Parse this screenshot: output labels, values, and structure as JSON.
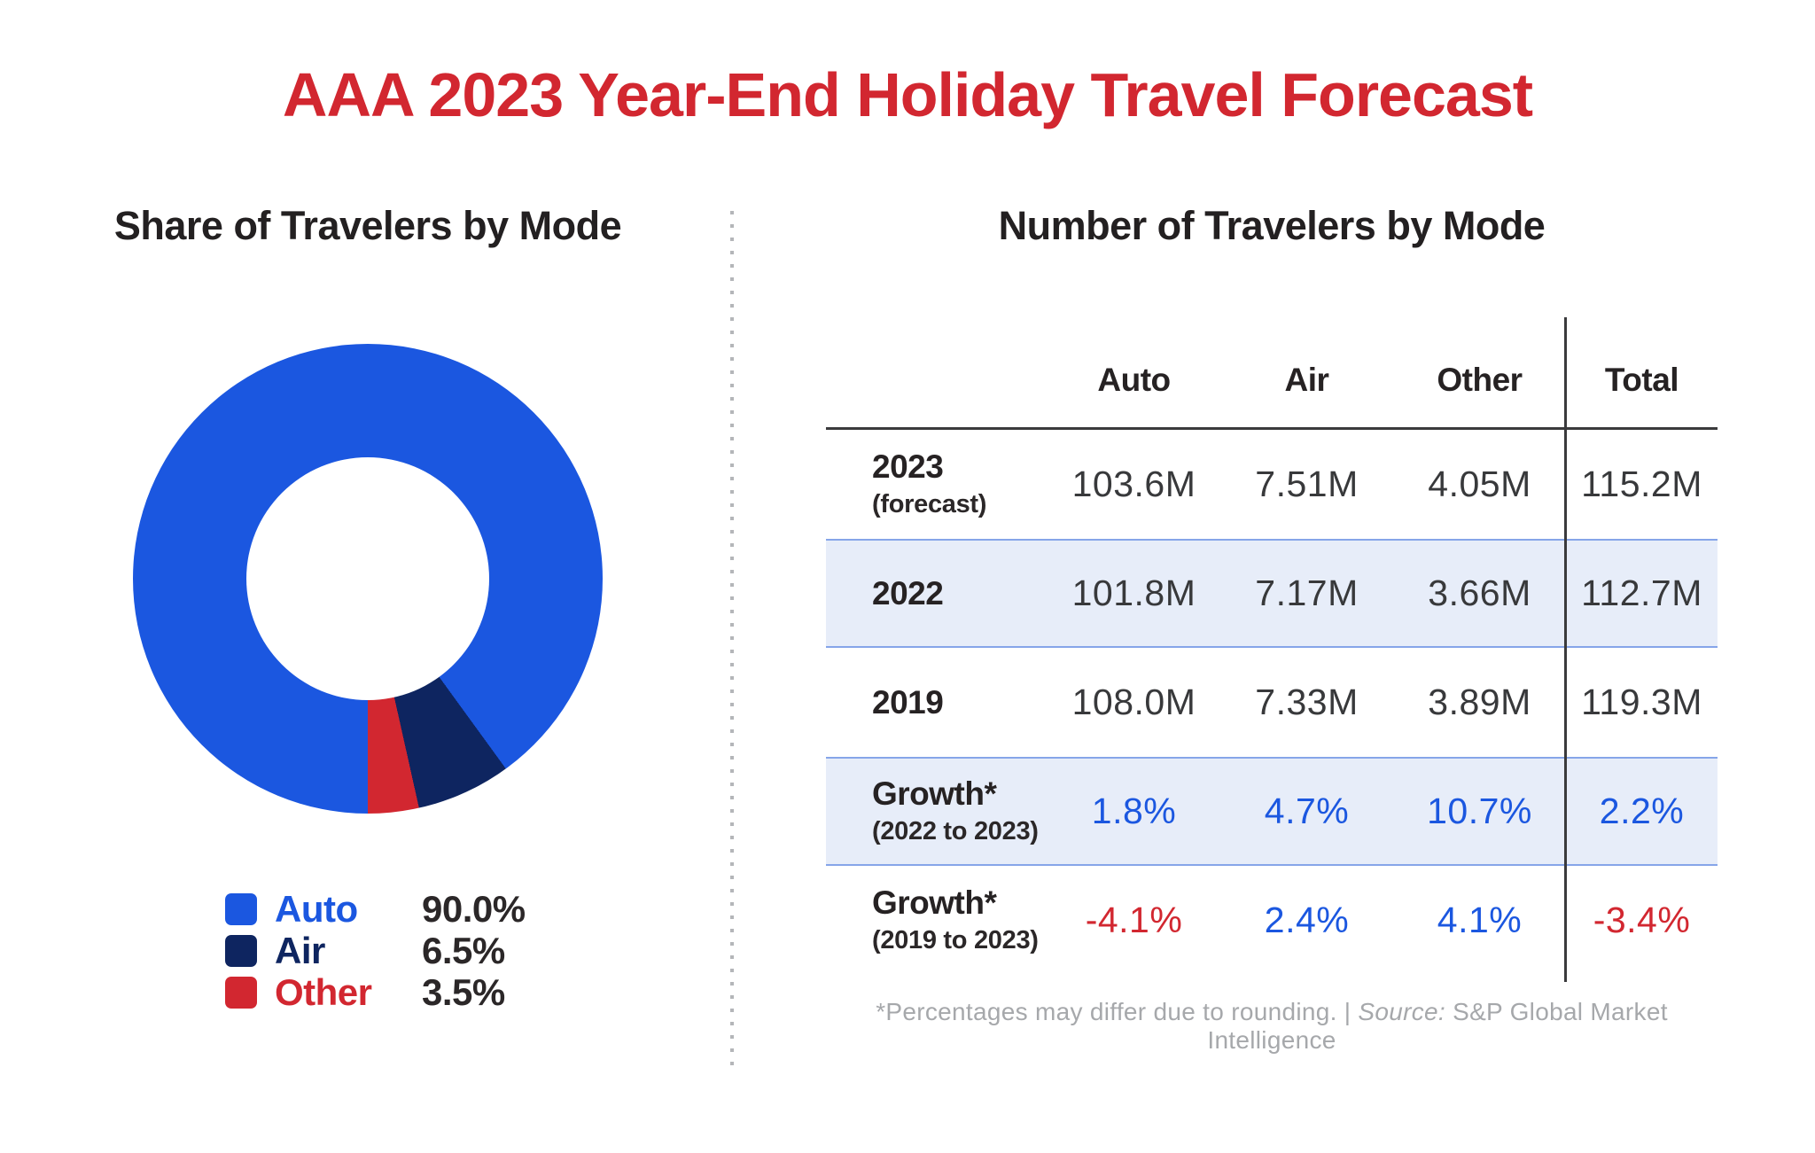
{
  "page": {
    "title": "AAA 2023 Year-End Holiday Travel Forecast"
  },
  "colors": {
    "red": "#d22730",
    "blue": "#1b57e0",
    "navy": "#0e2560",
    "band_bg": "#e7edf9",
    "band_border": "#86a5e9",
    "line_dark": "#3a3a3c",
    "divider_gray": "#b4b6b9",
    "footnote_gray": "#a6a8ab"
  },
  "chart_data": {
    "type": "pie",
    "donut": true,
    "title": "Share of Travelers by Mode",
    "categories": [
      "Auto",
      "Air",
      "Other"
    ],
    "values": [
      90.0,
      6.5,
      3.5
    ],
    "value_labels": [
      "90.0%",
      "6.5%",
      "3.5%"
    ],
    "colors": [
      "#1b57e0",
      "#0e2560",
      "#d22730"
    ],
    "start_angle_deg": 180,
    "legend_position": "bottom"
  },
  "table": {
    "title": "Number of Travelers by Mode",
    "columns": [
      "Auto",
      "Air",
      "Other",
      "Total"
    ],
    "rows": [
      {
        "label": "2023",
        "sublabel": "(forecast)",
        "values": [
          "103.6M",
          "7.51M",
          "4.05M",
          "115.2M"
        ]
      },
      {
        "label": "2022",
        "sublabel": "",
        "values": [
          "101.8M",
          "7.17M",
          "3.66M",
          "112.7M"
        ]
      },
      {
        "label": "2019",
        "sublabel": "",
        "values": [
          "108.0M",
          "7.33M",
          "3.89M",
          "119.3M"
        ]
      },
      {
        "label": "Growth*",
        "sublabel": "(2022 to 2023)",
        "values": [
          "1.8%",
          "4.7%",
          "10.7%",
          "2.2%"
        ]
      },
      {
        "label": "Growth*",
        "sublabel": "(2019 to 2023)",
        "values": [
          "-4.1%",
          "2.4%",
          "4.1%",
          "-3.4%"
        ]
      }
    ]
  },
  "footnote": {
    "note": "*Percentages may differ due to rounding. | ",
    "source_label": "Source:",
    "source_text": " S&P Global Market Intelligence"
  }
}
